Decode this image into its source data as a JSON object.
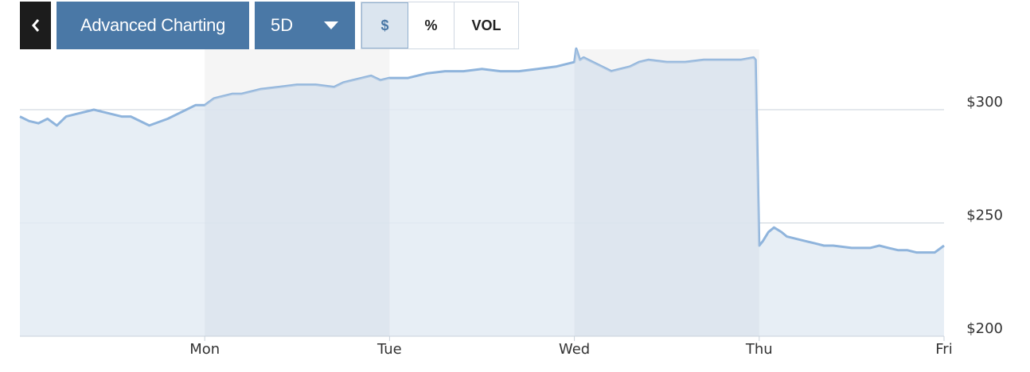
{
  "toolbar": {
    "back_icon": "chevron-left-icon",
    "advanced_label": "Advanced Charting",
    "range_label": "5D",
    "range_icon": "caret-down-icon",
    "modes": [
      {
        "label": "$",
        "active": true
      },
      {
        "label": "%",
        "active": false
      },
      {
        "label": "VOL",
        "active": false
      }
    ]
  },
  "colors": {
    "accent": "#4a78a6",
    "line": "#8fb4dc",
    "fill": "#e3ebf3",
    "band": "#d5dee8",
    "grid": "#c9d2db"
  },
  "chart_data": {
    "type": "area",
    "title": "",
    "xlabel": "",
    "ylabel": "",
    "x_ticks": [
      "Mon",
      "Tue",
      "Wed",
      "Thu",
      "Fri"
    ],
    "y_ticks": [
      "$300",
      "$250",
      "$200"
    ],
    "ylim": [
      200,
      302
    ],
    "xlim": [
      -1,
      4
    ],
    "grid": "horizontal",
    "series": [
      {
        "x": [
          -1.0,
          -0.95,
          -0.9,
          -0.85,
          -0.8,
          -0.75,
          -0.7,
          -0.6,
          -0.5,
          -0.45,
          -0.4,
          -0.3,
          -0.2,
          -0.15,
          -0.1,
          -0.05,
          0.0,
          0.05,
          0.1,
          0.15,
          0.2,
          0.3,
          0.4,
          0.5,
          0.6,
          0.7,
          0.75,
          0.8,
          0.9,
          0.95,
          1.0,
          1.05,
          1.1,
          1.2,
          1.3,
          1.4,
          1.5,
          1.6,
          1.7,
          1.8,
          1.9,
          2.0,
          2.01,
          2.03,
          2.05,
          2.1,
          2.15,
          2.2,
          2.25,
          2.3,
          2.35,
          2.4,
          2.5,
          2.6,
          2.7,
          2.8,
          2.9,
          2.97,
          2.98,
          3.0,
          3.02,
          3.05,
          3.08,
          3.12,
          3.15,
          3.2,
          3.25,
          3.3,
          3.35,
          3.4,
          3.5,
          3.6,
          3.65,
          3.7,
          3.75,
          3.8,
          3.85,
          3.9,
          3.95,
          4.0
        ],
        "y": [
          297,
          295,
          294,
          296,
          293,
          297,
          298,
          300,
          298,
          297,
          297,
          293,
          296,
          298,
          300,
          302,
          302,
          305,
          306,
          307,
          307,
          309,
          310,
          311,
          311,
          310,
          312,
          313,
          315,
          313,
          314,
          314,
          314,
          316,
          317,
          317,
          318,
          317,
          317,
          318,
          319,
          321,
          327,
          322,
          323,
          321,
          319,
          317,
          318,
          319,
          321,
          322,
          321,
          321,
          322,
          322,
          322,
          323,
          322,
          240,
          242,
          246,
          248,
          246,
          244,
          243,
          242,
          241,
          240,
          240,
          239,
          239,
          240,
          239,
          238,
          238,
          237,
          237,
          237,
          240
        ]
      }
    ]
  }
}
